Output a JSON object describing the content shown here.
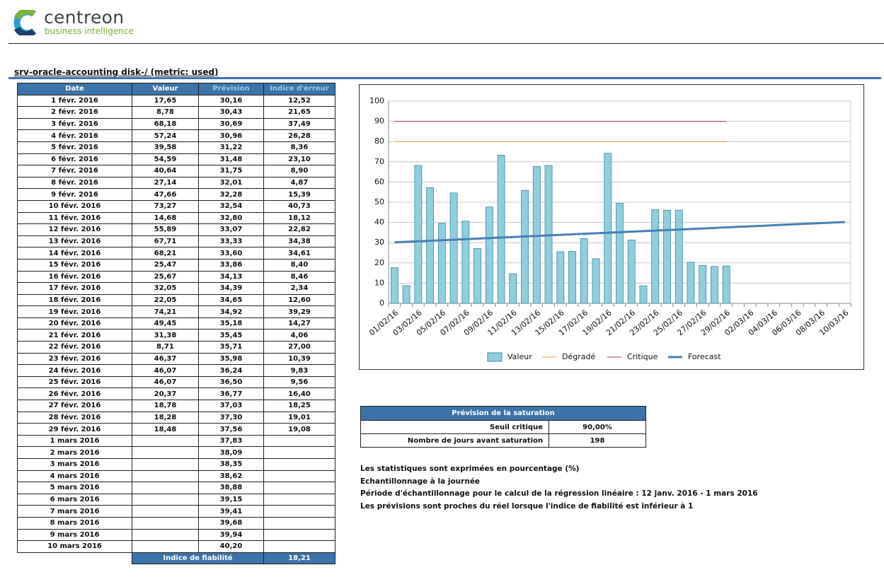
{
  "header": {
    "brand": "centreon",
    "tagline": "business intelligence"
  },
  "title": "srv-oracle-accounting  disk-/  (metric: used)",
  "table": {
    "columns": [
      "Date",
      "Valeur",
      "Prévision",
      "Indice d'erreur"
    ],
    "rows": [
      [
        "1 févr. 2016",
        "17,65",
        "30,16",
        "12,52"
      ],
      [
        "2 févr. 2016",
        "8,78",
        "30,43",
        "21,65"
      ],
      [
        "3 févr. 2016",
        "68,18",
        "30,69",
        "37,49"
      ],
      [
        "4 févr. 2016",
        "57,24",
        "30,96",
        "26,28"
      ],
      [
        "5 févr. 2016",
        "39,58",
        "31,22",
        "8,36"
      ],
      [
        "6 févr. 2016",
        "54,59",
        "31,48",
        "23,10"
      ],
      [
        "7 févr. 2016",
        "40,64",
        "31,75",
        "8,90"
      ],
      [
        "8 févr. 2016",
        "27,14",
        "32,01",
        "4,87"
      ],
      [
        "9 févr. 2016",
        "47,66",
        "32,28",
        "15,39"
      ],
      [
        "10 févr. 2016",
        "73,27",
        "32,54",
        "40,73"
      ],
      [
        "11 févr. 2016",
        "14,68",
        "32,80",
        "18,12"
      ],
      [
        "12 févr. 2016",
        "55,89",
        "33,07",
        "22,82"
      ],
      [
        "13 févr. 2016",
        "67,71",
        "33,33",
        "34,38"
      ],
      [
        "14 févr. 2016",
        "68,21",
        "33,60",
        "34,61"
      ],
      [
        "15 févr. 2016",
        "25,47",
        "33,86",
        "8,40"
      ],
      [
        "16 févr. 2016",
        "25,67",
        "34,13",
        "8,46"
      ],
      [
        "17 févr. 2016",
        "32,05",
        "34,39",
        "2,34"
      ],
      [
        "18 févr. 2016",
        "22,05",
        "34,65",
        "12,60"
      ],
      [
        "19 févr. 2016",
        "74,21",
        "34,92",
        "39,29"
      ],
      [
        "20 févr. 2016",
        "49,45",
        "35,18",
        "14,27"
      ],
      [
        "21 févr. 2016",
        "31,38",
        "35,45",
        "4,06"
      ],
      [
        "22 févr. 2016",
        "8,71",
        "35,71",
        "27,00"
      ],
      [
        "23 févr. 2016",
        "46,37",
        "35,98",
        "10,39"
      ],
      [
        "24 févr. 2016",
        "46,07",
        "36,24",
        "9,83"
      ],
      [
        "25 févr. 2016",
        "46,07",
        "36,50",
        "9,56"
      ],
      [
        "26 févr. 2016",
        "20,37",
        "36,77",
        "16,40"
      ],
      [
        "27 févr. 2016",
        "18,78",
        "37,03",
        "18,25"
      ],
      [
        "28 févr. 2016",
        "18,28",
        "37,30",
        "19,01"
      ],
      [
        "29 févr. 2016",
        "18,48",
        "37,56",
        "19,08"
      ],
      [
        "1 mars 2016",
        null,
        "37,83",
        null
      ],
      [
        "2 mars 2016",
        null,
        "38,09",
        null
      ],
      [
        "3 mars 2016",
        null,
        "38,35",
        null
      ],
      [
        "4 mars 2016",
        null,
        "38,62",
        null
      ],
      [
        "5 mars 2016",
        null,
        "38,88",
        null
      ],
      [
        "6 mars 2016",
        null,
        "39,15",
        null
      ],
      [
        "7 mars 2016",
        null,
        "39,41",
        null
      ],
      [
        "8 mars 2016",
        null,
        "39,68",
        null
      ],
      [
        "9 mars 2016",
        null,
        "39,94",
        null
      ],
      [
        "10 mars 2016",
        null,
        "40,20",
        null
      ]
    ],
    "footer": {
      "label": "Indice de fiabilité",
      "value": "18,21"
    }
  },
  "chart_data": {
    "type": "bar",
    "categories": [
      "01/02/16",
      null,
      "03/02/16",
      null,
      "05/02/16",
      null,
      "07/02/16",
      null,
      "09/02/16",
      null,
      "11/02/16",
      null,
      "13/02/16",
      null,
      "15/02/16",
      null,
      "17/02/16",
      null,
      "19/02/16",
      null,
      "21/02/16",
      null,
      "23/02/16",
      null,
      "25/02/16",
      null,
      "27/02/16",
      null,
      "29/02/16",
      null,
      "02/03/16",
      null,
      "04/03/16",
      null,
      "06/03/16",
      null,
      "08/03/16",
      null,
      "10/03/16"
    ],
    "series": [
      {
        "name": "Valeur",
        "type": "bar",
        "color": "#92cddc",
        "values": [
          17.65,
          8.78,
          68.18,
          57.24,
          39.58,
          54.59,
          40.64,
          27.14,
          47.66,
          73.27,
          14.68,
          55.89,
          67.71,
          68.21,
          25.47,
          25.67,
          32.05,
          22.05,
          74.21,
          49.45,
          31.38,
          8.71,
          46.37,
          46.07,
          46.07,
          20.37,
          18.78,
          18.28,
          18.48,
          null,
          null,
          null,
          null,
          null,
          null,
          null,
          null,
          null,
          null
        ]
      },
      {
        "name": "Dégradé",
        "type": "line",
        "color": "#e5a040",
        "values": [
          80,
          80,
          80,
          80,
          80,
          80,
          80,
          80,
          80,
          80,
          80,
          80,
          80,
          80,
          80,
          80,
          80,
          80,
          80,
          80,
          80,
          80,
          80,
          80,
          80,
          80,
          80,
          80,
          80,
          null,
          null,
          null,
          null,
          null,
          null,
          null,
          null,
          null,
          null
        ]
      },
      {
        "name": "Critique",
        "type": "line",
        "color": "#c0306a",
        "values": [
          90,
          90,
          90,
          90,
          90,
          90,
          90,
          90,
          90,
          90,
          90,
          90,
          90,
          90,
          90,
          90,
          90,
          90,
          90,
          90,
          90,
          90,
          90,
          90,
          90,
          90,
          90,
          90,
          90,
          null,
          null,
          null,
          null,
          null,
          null,
          null,
          null,
          null,
          null
        ]
      },
      {
        "name": "Forecast",
        "type": "line",
        "color": "#4a7fb5",
        "values": [
          30.16,
          30.43,
          30.69,
          30.96,
          31.22,
          31.48,
          31.75,
          32.01,
          32.28,
          32.54,
          32.8,
          33.07,
          33.33,
          33.6,
          33.86,
          34.13,
          34.39,
          34.65,
          34.92,
          35.18,
          35.45,
          35.71,
          35.98,
          36.24,
          36.5,
          36.77,
          37.03,
          37.3,
          37.56,
          37.83,
          38.09,
          38.35,
          38.62,
          38.88,
          39.15,
          39.41,
          39.68,
          39.94,
          40.2
        ]
      }
    ],
    "ylim": [
      0,
      100
    ],
    "yticks": [
      0,
      10,
      20,
      30,
      40,
      50,
      60,
      70,
      80,
      90,
      100
    ],
    "grid": true,
    "legend": "bottom"
  },
  "saturation": {
    "title": "Prévision de la saturation",
    "rows": [
      [
        "Seuil critique",
        "90,00%"
      ],
      [
        "Nombre de jours avant saturation",
        "198"
      ]
    ]
  },
  "notes": [
    "Les statistiques sont exprimées en pourcentage (%)",
    "Echantillonnage à la journée",
    "Période d'échantillonnage pour le calcul de la régression linéaire : 12 janv. 2016 - 1 mars 2016",
    "Les prévisions sont proches du réel lorsque l'indice de fiabilité est inférieur à 1"
  ]
}
